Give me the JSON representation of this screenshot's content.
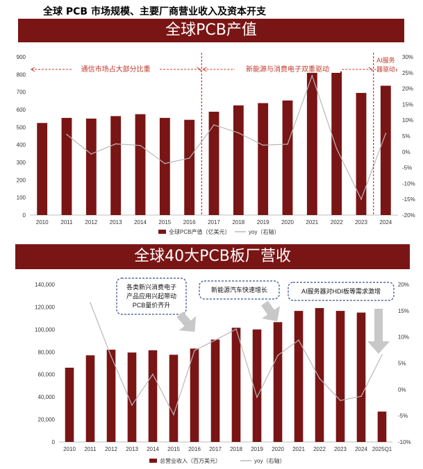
{
  "page_title": "全球 PCB 市场规模、主要厂商营业收入及资本开支",
  "banner1": "全球PCB产值",
  "banner2": "全球40大PCB板厂营收",
  "colors": {
    "bar": "#7a1515",
    "line": "#b8b8b8",
    "annotation": "#c0392b",
    "box_border": "#2e4d8a",
    "arrow": "#c8c8c8"
  },
  "chart_data": [
    {
      "type": "bar",
      "title": "全球PCB产值",
      "categories": [
        "2010",
        "2011",
        "2012",
        "2013",
        "2014",
        "2015",
        "2016",
        "2017",
        "2018",
        "2019",
        "2020",
        "2021",
        "2022",
        "2023",
        "2024"
      ],
      "y_ticks": [
        "0",
        "100",
        "200",
        "300",
        "400",
        "500",
        "600",
        "700",
        "800",
        "900"
      ],
      "y2_ticks": [
        "-20%",
        "-15%",
        "-10%",
        "-5%",
        "0%",
        "5%",
        "10%",
        "15%",
        "20%",
        "25%",
        "30%"
      ],
      "ylim": [
        0,
        900
      ],
      "y2lim": [
        -20,
        30
      ],
      "series": [
        {
          "name": "全球PCB产值（亿美元）",
          "type": "bar",
          "axis": "left",
          "values": [
            524,
            553,
            549,
            563,
            574,
            553,
            542,
            588,
            624,
            637,
            652,
            809,
            817,
            695,
            736
          ]
        },
        {
          "name": "yoy（右轴）",
          "type": "line",
          "axis": "right",
          "values": [
            null,
            5.5,
            -0.7,
            2.5,
            2.0,
            -3.7,
            -2.0,
            8.5,
            6.0,
            2.1,
            2.4,
            24.1,
            1.0,
            -15.0,
            5.8
          ]
        }
      ],
      "annotations": [
        {
          "text": "通信市场占大部分比重"
        },
        {
          "text": "新能源与消费电子双重驱动"
        },
        {
          "text": "AI服务"
        },
        {
          "text": "器驱动"
        }
      ],
      "legend": [
        "全球PCB产值（亿美元）",
        "yoy（右轴）"
      ],
      "legend_position": "bottom"
    },
    {
      "type": "bar",
      "title": "全球40大PCB板厂营收",
      "categories": [
        "2010",
        "2011",
        "2012",
        "2013",
        "2014",
        "2015",
        "2016",
        "2017",
        "2018",
        "2019",
        "2020",
        "2021",
        "2022",
        "2023",
        "2024",
        "2025Q1"
      ],
      "y_ticks": [
        "0",
        "20,000",
        "40,000",
        "60,000",
        "80,000",
        "100,000",
        "120,000",
        "140,000"
      ],
      "y2_ticks": [
        "-10%",
        "-5%",
        "0%",
        "5%",
        "10%",
        "15%",
        "20%"
      ],
      "ylim": [
        0,
        140000
      ],
      "y2lim": [
        -10,
        20
      ],
      "series": [
        {
          "name": "总营业收入（百万美元）",
          "type": "bar",
          "axis": "left",
          "values": [
            66000,
            77000,
            82000,
            79500,
            81500,
            77500,
            83000,
            91000,
            101500,
            100000,
            106500,
            116500,
            119000,
            116500,
            115000,
            27000
          ]
        },
        {
          "name": "yoy（右轴）",
          "type": "line",
          "axis": "right",
          "values": [
            null,
            16.5,
            6.3,
            -3.0,
            2.9,
            -4.8,
            7.4,
            9.4,
            11.5,
            -1.5,
            6.5,
            9.4,
            2.1,
            -2.1,
            -1.3,
            6.6
          ]
        }
      ],
      "callouts": [
        {
          "text": [
            "各类新兴消费电子",
            "产品应用兴起带动",
            "PCB量价齐升"
          ]
        },
        {
          "text": [
            "新能源汽车快速增长"
          ]
        },
        {
          "text": [
            "AI服务器对HDI板等需求激增"
          ]
        }
      ],
      "legend": [
        "总营业收入（百万美元）",
        "yoy（右轴）"
      ],
      "legend_position": "bottom"
    }
  ]
}
